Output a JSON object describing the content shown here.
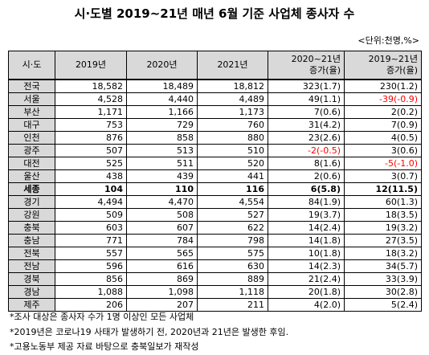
{
  "header": {
    "title": "시·도별 2019~21년 매년 6월 기준 사업체 종사자 수",
    "unit": "<단위:천명,%>"
  },
  "table": {
    "columns": [
      [
        "시·도"
      ],
      [
        "2019년"
      ],
      [
        "2020년"
      ],
      [
        "2021년"
      ],
      [
        "2020~21년",
        "증가(율)"
      ],
      [
        "2019~21년",
        "증가(율)"
      ]
    ],
    "rows": [
      [
        "전국",
        "18,582",
        "18,489",
        "18,812",
        "323(1.7)",
        "230(1.2)"
      ],
      [
        "서울",
        "4,528",
        "4,440",
        "4,489",
        "49(1.1)",
        "-39(-0.9)"
      ],
      [
        "부산",
        "1,171",
        "1,166",
        "1,173",
        "7(0.6)",
        "2(0.2)"
      ],
      [
        "대구",
        "753",
        "729",
        "760",
        "31(4.2)",
        "7(0.9)"
      ],
      [
        "인천",
        "876",
        "858",
        "880",
        "23(2.6)",
        "4(0.5)"
      ],
      [
        "광주",
        "507",
        "513",
        "510",
        "-2(-0.5)",
        "3(0.6)"
      ],
      [
        "대전",
        "525",
        "511",
        "520",
        "8(1.6)",
        "-5(-1.0)"
      ],
      [
        "울산",
        "438",
        "439",
        "441",
        "2(0.6)",
        "3(0.7)"
      ],
      [
        "세종",
        "104",
        "110",
        "116",
        "6(5.8)",
        "12(11.5)"
      ],
      [
        "경기",
        "4,494",
        "4,470",
        "4,554",
        "84(1.9)",
        "60(1.3)"
      ],
      [
        "강원",
        "509",
        "508",
        "527",
        "19(3.7)",
        "18(3.5)"
      ],
      [
        "충북",
        "603",
        "607",
        "622",
        "14(2.4)",
        "19(3.2)"
      ],
      [
        "충남",
        "771",
        "784",
        "798",
        "14(1.8)",
        "27(3.5)"
      ],
      [
        "전북",
        "557",
        "565",
        "575",
        "10(1.8)",
        "18(3.2)"
      ],
      [
        "전남",
        "596",
        "616",
        "630",
        "14(2.3)",
        "34(5.7)"
      ],
      [
        "경북",
        "856",
        "869",
        "889",
        "21(2.4)",
        "33(3.9)"
      ],
      [
        "경남",
        "1,088",
        "1,098",
        "1,118",
        "20(1.8)",
        "30(2.8)"
      ],
      [
        "제주",
        "206",
        "207",
        "211",
        "4(2.0)",
        "5(2.4)"
      ]
    ],
    "bold_rows": [
      8
    ],
    "negative_color": "#ff0000",
    "header_background": "#d9d9d9"
  },
  "notes": [
    "*조사 대상은 종사자 수가 1명 이상인 모든 사업체",
    "*2019년은 코로나19 사태가 발생하기 전, 2020년과 21년은 발생한 후임.",
    "*고용노동부 제공 자료 바탕으로 충북일보가 재작성"
  ]
}
